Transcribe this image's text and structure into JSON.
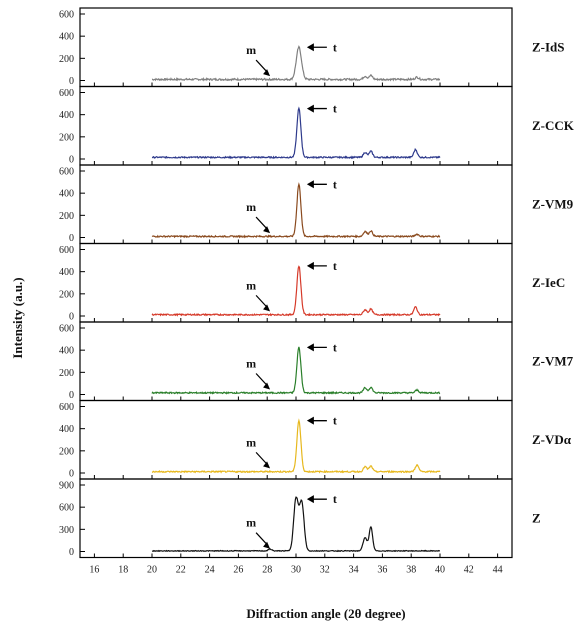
{
  "chart_data": {
    "type": "line",
    "xlabel": "Diffraction  angle (2θ degree)",
    "ylabel": "Intensity (a.u.)",
    "xlim": [
      15,
      45
    ],
    "x_ticks": [
      16,
      18,
      20,
      22,
      24,
      26,
      28,
      30,
      32,
      34,
      36,
      38,
      40,
      42,
      44
    ],
    "grid": false,
    "annotation_labels": {
      "monoclinic": "m",
      "tetragonal": "t"
    },
    "panels": [
      {
        "name": "Z-IdS",
        "color": "#808080",
        "ylim": [
          0,
          600
        ],
        "y_ticks": [
          0,
          200,
          400,
          600
        ],
        "baseline": 10,
        "noise": 8,
        "peaks": [
          [
            30.2,
            290,
            0.18
          ],
          [
            34.8,
            30,
            0.12
          ],
          [
            35.2,
            35,
            0.12
          ],
          [
            38.4,
            20,
            0.12
          ]
        ],
        "m_annotation": true,
        "m_x": 28.2,
        "t_x": 30.2
      },
      {
        "name": "Z-CCK",
        "color": "#2e3a8c",
        "ylim": [
          0,
          600
        ],
        "y_ticks": [
          0,
          200,
          400,
          600
        ],
        "baseline": 15,
        "noise": 6,
        "peaks": [
          [
            30.2,
            440,
            0.14
          ],
          [
            34.8,
            45,
            0.12
          ],
          [
            35.2,
            55,
            0.12
          ],
          [
            38.3,
            70,
            0.12
          ]
        ],
        "m_annotation": false,
        "m_x": 28.2,
        "t_x": 30.2
      },
      {
        "name": "Z-VM9",
        "color": "#8a4a1e",
        "ylim": [
          0,
          600
        ],
        "y_ticks": [
          0,
          200,
          400,
          600
        ],
        "baseline": 10,
        "noise": 6,
        "peaks": [
          [
            30.2,
            470,
            0.14
          ],
          [
            34.8,
            45,
            0.12
          ],
          [
            35.2,
            50,
            0.12
          ],
          [
            38.4,
            20,
            0.12
          ]
        ],
        "m_annotation": true,
        "m_x": 28.2,
        "t_x": 30.2
      },
      {
        "name": "Z-IeC",
        "color": "#d63a2a",
        "ylim": [
          0,
          600
        ],
        "y_ticks": [
          0,
          200,
          400,
          600
        ],
        "baseline": 12,
        "noise": 6,
        "peaks": [
          [
            30.2,
            440,
            0.14
          ],
          [
            34.8,
            45,
            0.12
          ],
          [
            35.2,
            50,
            0.12
          ],
          [
            38.3,
            70,
            0.12
          ]
        ],
        "m_annotation": true,
        "m_x": 28.2,
        "t_x": 30.2
      },
      {
        "name": "Z-VM7",
        "color": "#2a7f2a",
        "ylim": [
          0,
          600
        ],
        "y_ticks": [
          0,
          200,
          400,
          600
        ],
        "baseline": 15,
        "noise": 6,
        "peaks": [
          [
            30.2,
            410,
            0.14
          ],
          [
            34.8,
            45,
            0.12
          ],
          [
            35.2,
            50,
            0.12
          ],
          [
            38.4,
            25,
            0.12
          ]
        ],
        "m_annotation": true,
        "m_x": 28.2,
        "t_x": 30.2
      },
      {
        "name": "Z-VDα",
        "color": "#e7b81e",
        "ylim": [
          0,
          600
        ],
        "y_ticks": [
          0,
          200,
          400,
          600
        ],
        "baseline": 12,
        "noise": 6,
        "peaks": [
          [
            30.2,
            460,
            0.14
          ],
          [
            34.8,
            45,
            0.12
          ],
          [
            35.2,
            50,
            0.12
          ],
          [
            38.4,
            60,
            0.12
          ]
        ],
        "m_annotation": true,
        "m_x": 28.2,
        "t_x": 30.2
      },
      {
        "name": "Z",
        "color": "#111111",
        "ylim": [
          0,
          900
        ],
        "y_ticks": [
          0,
          300,
          600,
          900
        ],
        "baseline": 8,
        "noise": 5,
        "peaks": [
          [
            30.0,
            700,
            0.16
          ],
          [
            30.4,
            650,
            0.16
          ],
          [
            34.8,
            180,
            0.14
          ],
          [
            35.2,
            320,
            0.12
          ],
          [
            28.2,
            25,
            0.12
          ]
        ],
        "m_annotation": true,
        "m_x": 28.2,
        "t_x": 30.2
      }
    ]
  }
}
